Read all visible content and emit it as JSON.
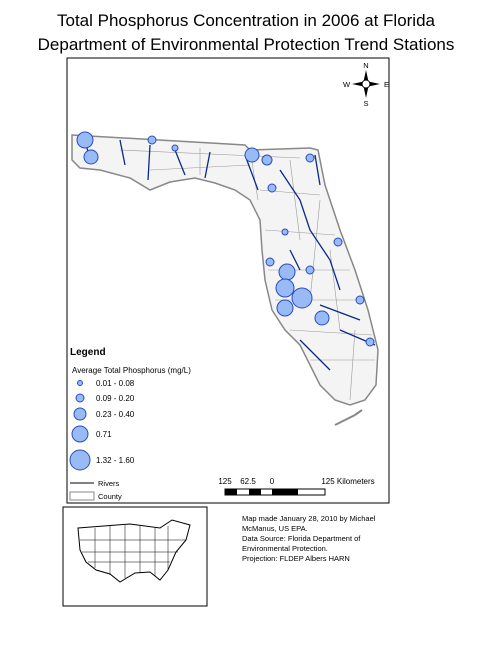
{
  "header": {
    "title_lines": [
      "Total Phosphorus Concentration in 2006 at Florida",
      "Department of Environmental Protection Trend Stations"
    ]
  },
  "compass": {
    "n": "N",
    "s": "S",
    "e": "E",
    "w": "W"
  },
  "legend": {
    "title": "Legend",
    "subtitle": "Average Total Phosphorus (mg/L)",
    "classes": [
      "0.01 - 0.08",
      "0.09 - 0.20",
      "0.23 - 0.40",
      "0.71",
      "1.32 - 1.60"
    ],
    "rivers": "Rivers",
    "county": "County"
  },
  "scale_bar": {
    "labels": [
      "125",
      "62.5",
      "0",
      "125 Kilometers"
    ]
  },
  "notes": [
    "Map made January 28, 2010 by Michael",
    "McManus, US EPA.",
    "Data Source: Florida Department of",
    "Environmental Protection.",
    "Projection: FLDEP Albers HARN"
  ]
}
